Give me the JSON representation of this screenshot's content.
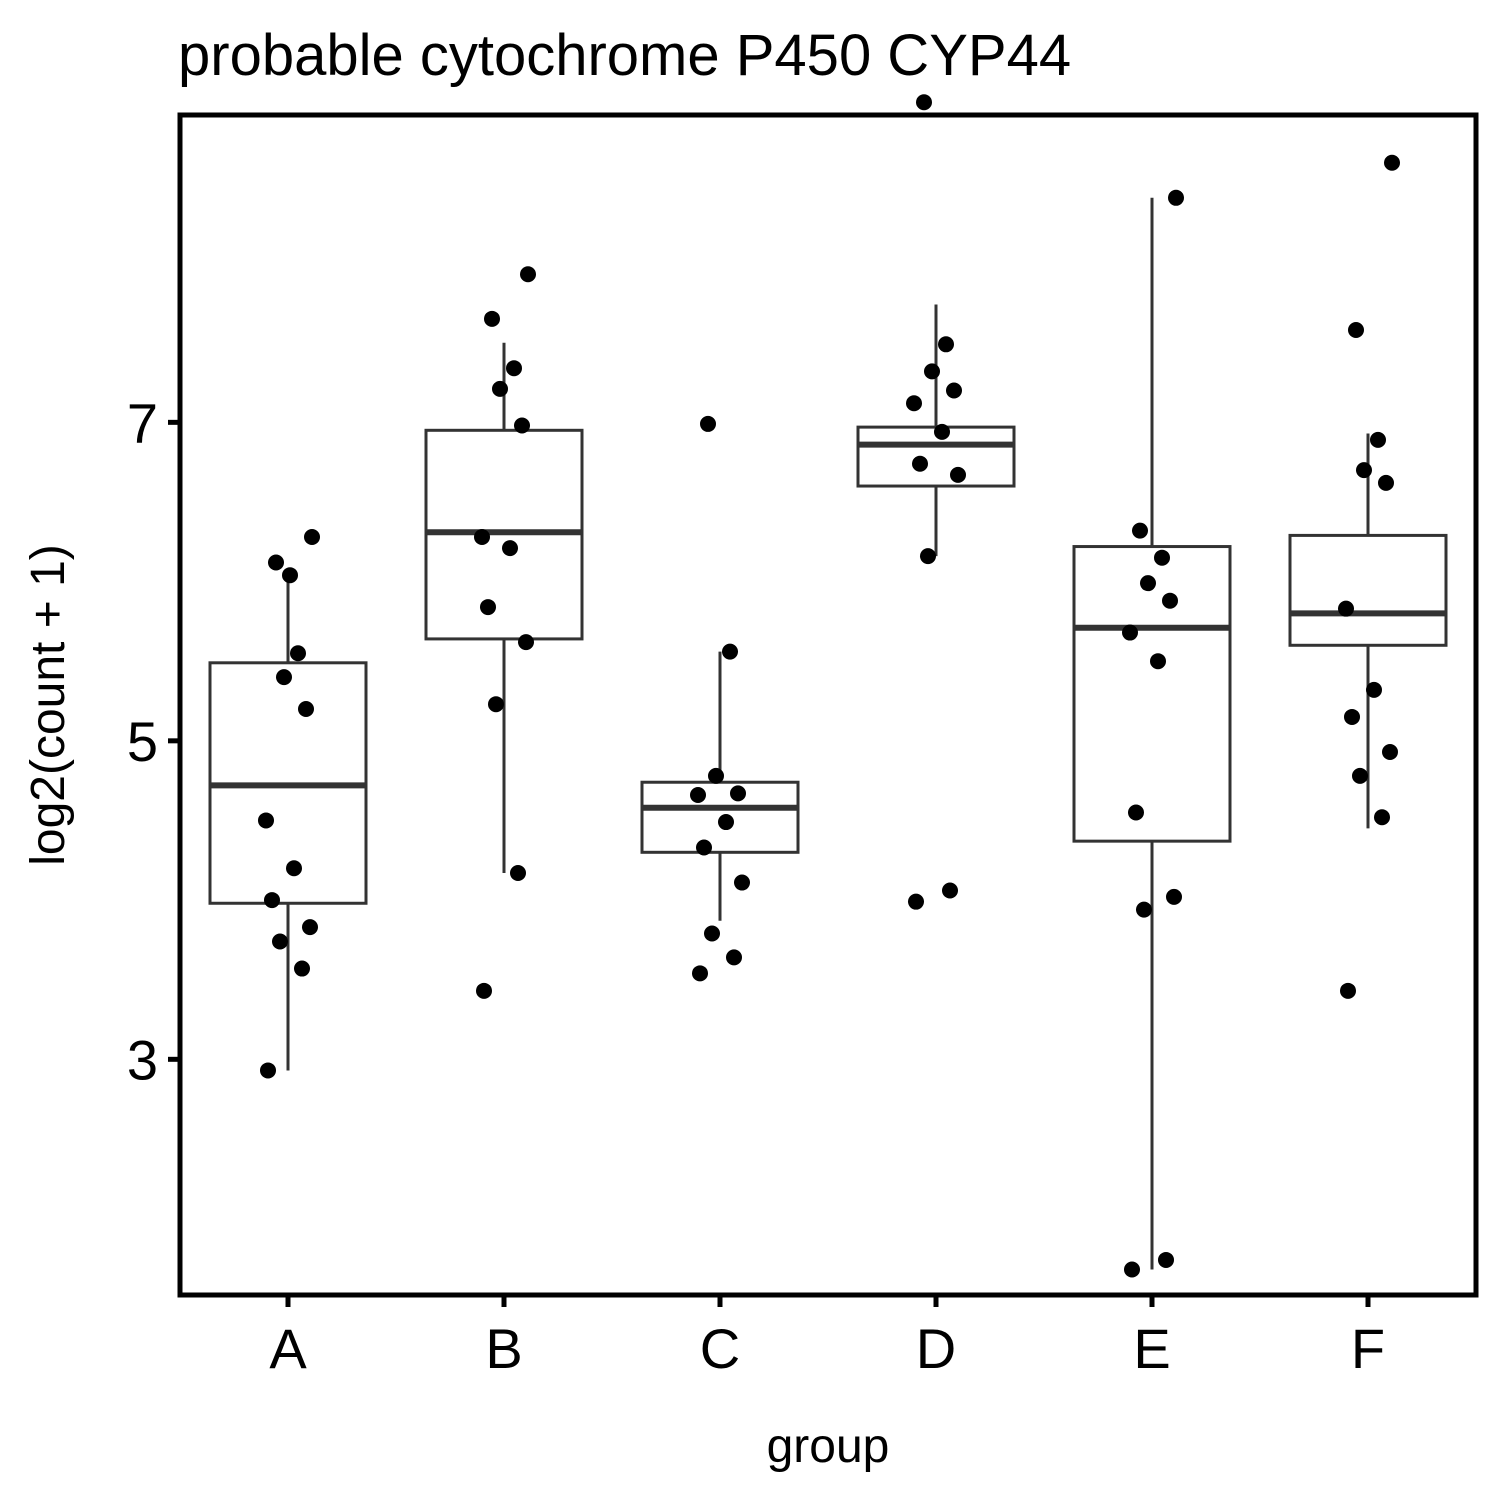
{
  "chart_data": {
    "type": "box",
    "title": "probable cytochrome P450 CYP44",
    "xlabel": "group",
    "ylabel": "log2(count + 1)",
    "categories": [
      "A",
      "B",
      "C",
      "D",
      "E",
      "F"
    ],
    "y_ticks": [
      3,
      5,
      7
    ],
    "ylim": [
      1.52,
      8.93
    ],
    "grid": false,
    "colors": {
      "box": "#333333",
      "point": "#000000",
      "frame": "#000000"
    },
    "boxes": [
      {
        "group": "A",
        "min": 2.93,
        "q1": 3.98,
        "median": 4.72,
        "q3": 5.49,
        "max": 6.08
      },
      {
        "group": "B",
        "min": 4.17,
        "q1": 5.64,
        "median": 6.31,
        "q3": 6.95,
        "max": 7.5
      },
      {
        "group": "C",
        "min": 3.87,
        "q1": 4.3,
        "median": 4.58,
        "q3": 4.74,
        "max": 5.56
      },
      {
        "group": "D",
        "min": 6.16,
        "q1": 6.6,
        "median": 6.86,
        "q3": 6.97,
        "max": 7.74
      },
      {
        "group": "E",
        "min": 1.68,
        "q1": 4.37,
        "median": 5.71,
        "q3": 6.22,
        "max": 8.41
      },
      {
        "group": "F",
        "min": 4.45,
        "q1": 5.6,
        "median": 5.8,
        "q3": 6.29,
        "max": 6.93
      }
    ],
    "points": [
      {
        "group": "A",
        "y": [
          2.93,
          3.57,
          3.74,
          3.83,
          4.0,
          4.2,
          4.5,
          5.2,
          5.4,
          5.55,
          6.12,
          6.28,
          6.04
        ]
      },
      {
        "group": "B",
        "y": [
          3.43,
          4.17,
          5.23,
          5.62,
          5.84,
          6.21,
          6.28,
          6.98,
          7.21,
          7.34,
          7.65,
          7.93
        ]
      },
      {
        "group": "C",
        "y": [
          3.54,
          3.64,
          3.79,
          4.11,
          4.33,
          4.49,
          4.66,
          4.67,
          4.78,
          5.56,
          6.99
        ]
      },
      {
        "group": "D",
        "y": [
          3.99,
          4.06,
          6.16,
          6.67,
          6.74,
          6.94,
          7.12,
          7.2,
          7.32,
          7.49,
          9.01
        ]
      },
      {
        "group": "E",
        "y": [
          1.68,
          1.74,
          3.94,
          4.02,
          4.55,
          5.5,
          5.68,
          5.88,
          5.99,
          6.15,
          6.32,
          8.41
        ]
      },
      {
        "group": "F",
        "y": [
          3.43,
          4.52,
          4.78,
          4.93,
          5.15,
          5.32,
          5.83,
          6.62,
          6.7,
          6.89,
          7.58,
          8.63
        ]
      }
    ]
  }
}
